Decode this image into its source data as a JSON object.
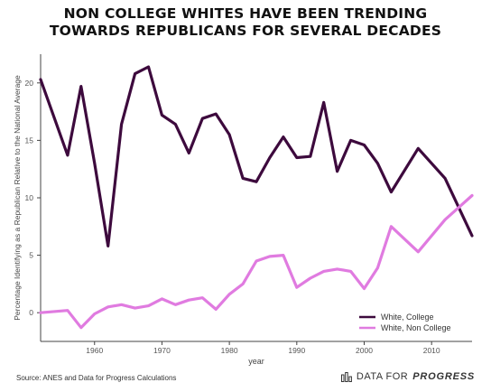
{
  "title_lines": [
    "NON COLLEGE WHITES HAVE BEEN TRENDING",
    "TOWARDS REPUBLICANS FOR SEVERAL DECADES"
  ],
  "source": "Source: ANES and Data for Progress Calculations",
  "brand": {
    "prefix": "DATA FOR",
    "emphasis": "PROGRESS",
    "icon": "bar-chart-icon"
  },
  "chart_data": {
    "type": "line",
    "title": "NON COLLEGE WHITES HAVE BEEN TRENDING TOWARDS REPUBLICANS FOR SEVERAL DECADES",
    "xlabel": "year",
    "ylabel": "Percentage Identifying as a Republican Relative to the National Average",
    "xlim": [
      1952,
      2016
    ],
    "ylim": [
      -2.5,
      22.5
    ],
    "xticks": [
      1960,
      1970,
      1980,
      1990,
      2000,
      2010
    ],
    "yticks": [
      0,
      5,
      10,
      15,
      20
    ],
    "grid": false,
    "legend": "bottom-right",
    "series": [
      {
        "name": "White, College",
        "color": "#3d0a3d",
        "x": [
          1952,
          1956,
          1958,
          1960,
          1962,
          1964,
          1966,
          1968,
          1970,
          1972,
          1974,
          1976,
          1978,
          1980,
          1982,
          1984,
          1986,
          1988,
          1990,
          1992,
          1994,
          1996,
          1998,
          2000,
          2002,
          2004,
          2008,
          2012,
          2016
        ],
        "y": [
          20.3,
          13.7,
          19.7,
          13.0,
          5.8,
          16.4,
          20.8,
          21.4,
          17.2,
          16.4,
          13.9,
          16.9,
          17.3,
          15.5,
          11.7,
          11.4,
          13.5,
          15.3,
          13.5,
          13.6,
          18.3,
          12.3,
          15.0,
          14.6,
          13.0,
          10.5,
          14.3,
          11.7,
          6.7
        ]
      },
      {
        "name": "White, Non College",
        "color": "#e07be0",
        "x": [
          1952,
          1956,
          1958,
          1960,
          1962,
          1964,
          1966,
          1968,
          1970,
          1972,
          1974,
          1976,
          1978,
          1980,
          1982,
          1984,
          1986,
          1988,
          1990,
          1992,
          1994,
          1996,
          1998,
          2000,
          2002,
          2004,
          2008,
          2012,
          2016
        ],
        "y": [
          0.0,
          0.2,
          -1.3,
          -0.1,
          0.5,
          0.7,
          0.4,
          0.6,
          1.2,
          0.7,
          1.1,
          1.3,
          0.3,
          1.6,
          2.5,
          4.5,
          4.9,
          5.0,
          2.2,
          3.0,
          3.6,
          3.8,
          3.6,
          2.1,
          3.9,
          7.5,
          5.3,
          8.1,
          10.2
        ]
      }
    ]
  }
}
